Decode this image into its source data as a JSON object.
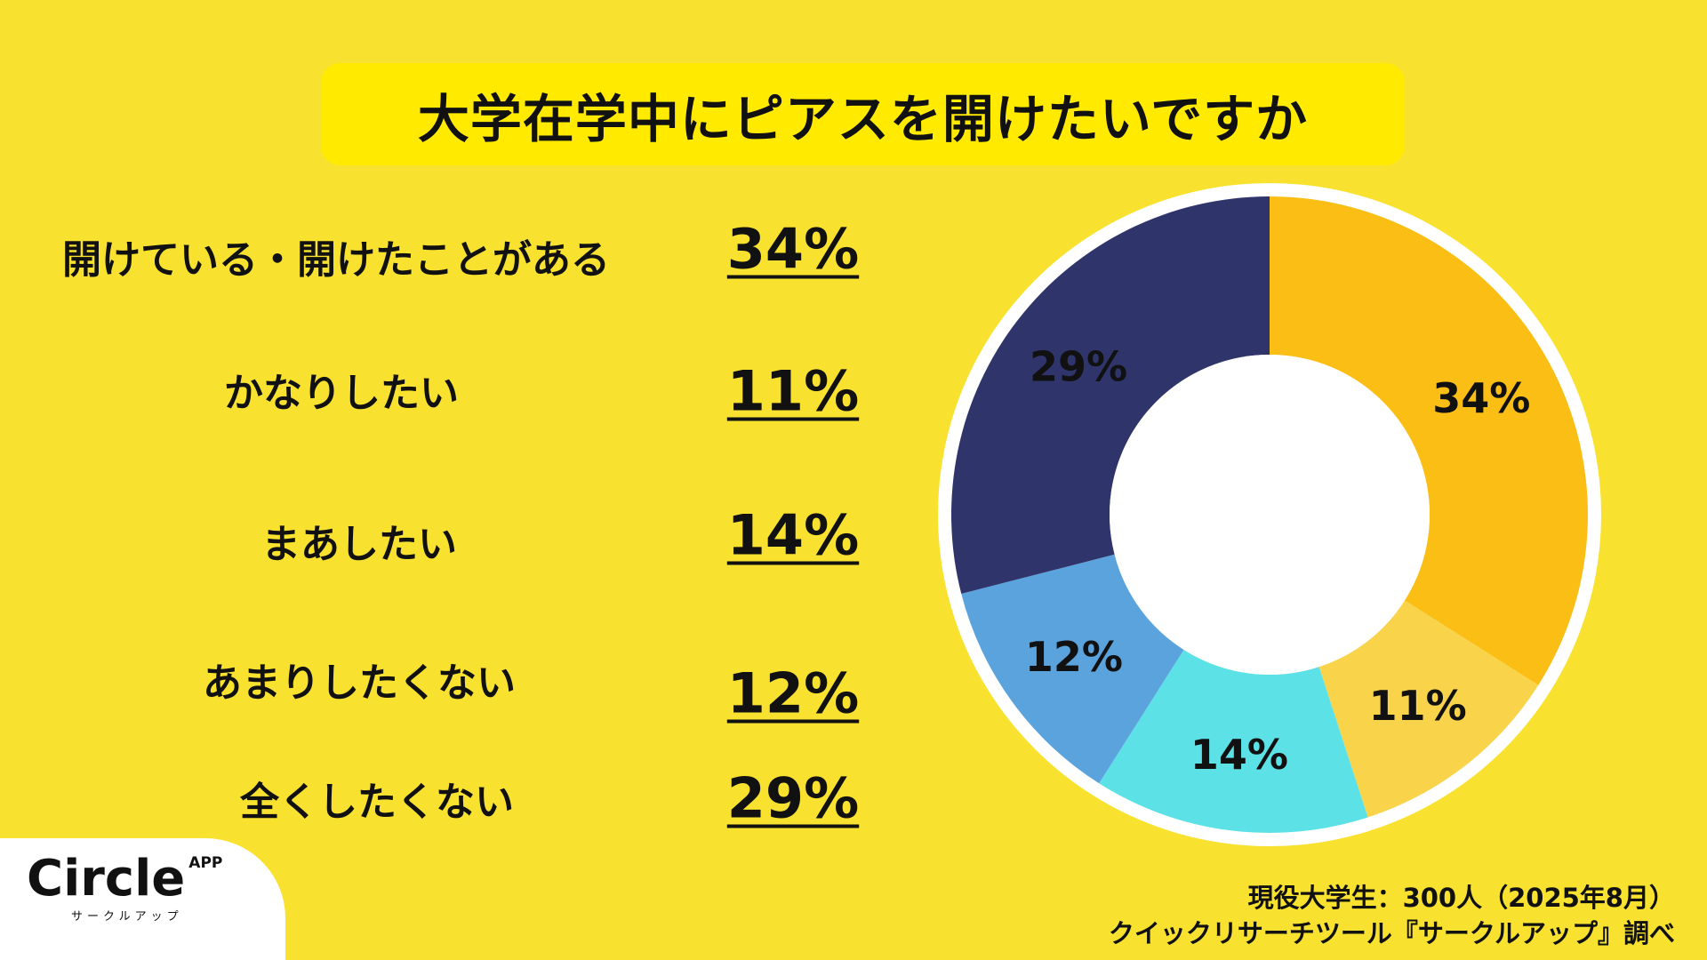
{
  "chart_data": {
    "type": "pie",
    "title": "大学在学中にピアスを開けたいですか",
    "donut": true,
    "start": "top, clockwise",
    "categories": [
      "開けている・開けたことがある",
      "かなりしたい",
      "まあしたい",
      "あまりしたくない",
      "全くしたくない"
    ],
    "values": [
      34,
      11,
      14,
      12,
      29
    ],
    "value_labels": [
      "34%",
      "11%",
      "14%",
      "12%",
      "29%"
    ],
    "colors": [
      "#FBBE14",
      "#F9D34A",
      "#5CE1E6",
      "#5BA3DC",
      "#2F356B"
    ]
  },
  "footer": {
    "source_line1": "現役大学生：300人（2025年8月）",
    "source_line2": "クイックリサーチツール『サークルアップ』調べ"
  },
  "logo": {
    "text": "Circle",
    "badge": "APP",
    "sub": "サークルアップ"
  }
}
